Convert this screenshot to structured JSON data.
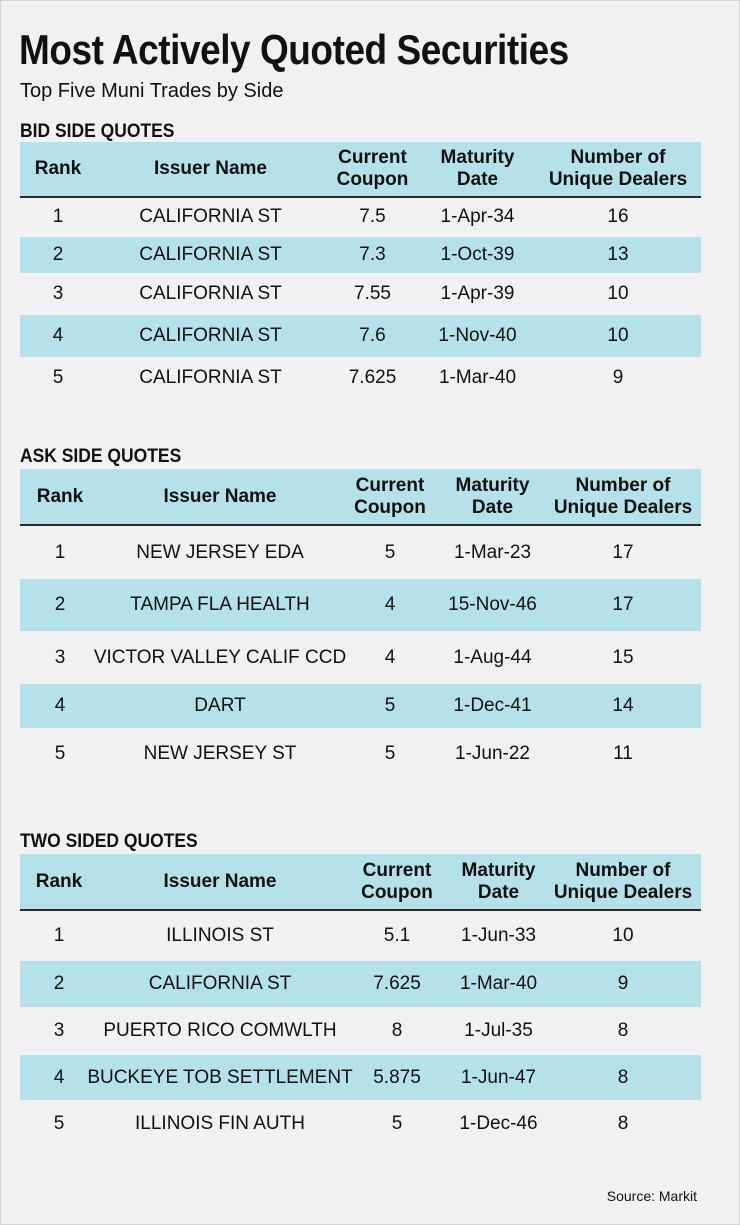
{
  "title": "Most Actively Quoted Securities",
  "subtitle": "Top Five Muni Trades by Side",
  "columns": {
    "rank": "Rank",
    "issuer": "Issuer Name",
    "coupon_line1": "Current",
    "coupon_line2": "Coupon",
    "maturity_line1": "Maturity",
    "maturity_line2": "Date",
    "dealers_line1": "Number of",
    "dealers_line2": "Unique Dealers"
  },
  "sections": [
    {
      "label": "BID SIDE QUOTES",
      "rows": [
        {
          "rank": "1",
          "issuer": "CALIFORNIA ST",
          "coupon": "7.5",
          "maturity": "1-Apr-34",
          "dealers": "16"
        },
        {
          "rank": "2",
          "issuer": "CALIFORNIA ST",
          "coupon": "7.3",
          "maturity": "1-Oct-39",
          "dealers": "13"
        },
        {
          "rank": "3",
          "issuer": "CALIFORNIA ST",
          "coupon": "7.55",
          "maturity": "1-Apr-39",
          "dealers": "10"
        },
        {
          "rank": "4",
          "issuer": "CALIFORNIA ST",
          "coupon": "7.6",
          "maturity": "1-Nov-40",
          "dealers": "10"
        },
        {
          "rank": "5",
          "issuer": "CALIFORNIA ST",
          "coupon": "7.625",
          "maturity": "1-Mar-40",
          "dealers": "9"
        }
      ]
    },
    {
      "label": "ASK SIDE QUOTES",
      "rows": [
        {
          "rank": "1",
          "issuer": "NEW JERSEY EDA",
          "coupon": "5",
          "maturity": "1-Mar-23",
          "dealers": "17"
        },
        {
          "rank": "2",
          "issuer": "TAMPA FLA HEALTH",
          "coupon": "4",
          "maturity": "15-Nov-46",
          "dealers": "17"
        },
        {
          "rank": "3",
          "issuer": "VICTOR VALLEY CALIF CCD",
          "coupon": "4",
          "maturity": "1-Aug-44",
          "dealers": "15"
        },
        {
          "rank": "4",
          "issuer": "DART",
          "coupon": "5",
          "maturity": "1-Dec-41",
          "dealers": "14"
        },
        {
          "rank": "5",
          "issuer": "NEW JERSEY ST",
          "coupon": "5",
          "maturity": "1-Jun-22",
          "dealers": "11"
        }
      ]
    },
    {
      "label": "TWO SIDED QUOTES",
      "rows": [
        {
          "rank": "1",
          "issuer": "ILLINOIS ST",
          "coupon": "5.1",
          "maturity": "1-Jun-33",
          "dealers": "10"
        },
        {
          "rank": "2",
          "issuer": "CALIFORNIA ST",
          "coupon": "7.625",
          "maturity": "1-Mar-40",
          "dealers": "9"
        },
        {
          "rank": "3",
          "issuer": "PUERTO RICO COMWLTH",
          "coupon": "8",
          "maturity": "1-Jul-35",
          "dealers": "8"
        },
        {
          "rank": "4",
          "issuer": "BUCKEYE  TOB SETTLEMENT",
          "coupon": "5.875",
          "maturity": "1-Jun-47",
          "dealers": "8"
        },
        {
          "rank": "5",
          "issuer": "ILLINOIS FIN AUTH",
          "coupon": "5",
          "maturity": "1-Dec-46",
          "dealers": "8"
        }
      ]
    }
  ],
  "source": "Source: Markit"
}
